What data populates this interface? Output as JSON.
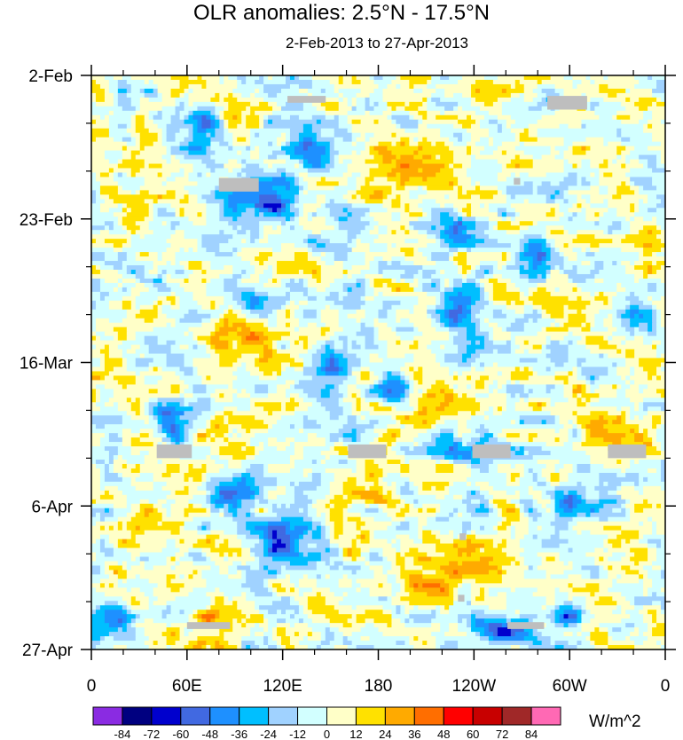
{
  "chart_data": {
    "type": "heatmap",
    "title": "OLR anomalies: 2.5°N - 17.5°N",
    "subtitle": "2-Feb-2013 to 27-Apr-2013",
    "x_tick_labels": [
      "0",
      "60E",
      "120E",
      "180",
      "120W",
      "60W",
      "0"
    ],
    "x_range_deg_east": [
      0,
      360
    ],
    "y_tick_labels": [
      "2-Feb",
      "23-Feb",
      "16-Mar",
      "6-Apr",
      "27-Apr"
    ],
    "y_range": [
      "2013-02-02",
      "2013-04-27"
    ],
    "y_direction": "time increases downward",
    "colorbar": {
      "units": "W/m^2",
      "levels": [
        -84,
        -72,
        -60,
        -48,
        -36,
        -24,
        -12,
        0,
        12,
        24,
        36,
        48,
        60,
        72,
        84
      ],
      "colors": [
        "#8a2be2",
        "#000080",
        "#0000cd",
        "#4169e1",
        "#1e90ff",
        "#00bfff",
        "#a0d2ff",
        "#d2ffff",
        "#ffffc8",
        "#ffe100",
        "#ffaa00",
        "#ff6e00",
        "#ff0000",
        "#c80000",
        "#a02828",
        "#ff69b4"
      ]
    },
    "missing_color": "#bebebe",
    "features": [
      {
        "kind": "negative",
        "x_deg": 70,
        "date": "2013-02-10",
        "lon_span_deg": 30,
        "days_span": 6,
        "strength": -40
      },
      {
        "kind": "negative",
        "x_deg": 110,
        "date": "2013-02-20",
        "lon_span_deg": 50,
        "days_span": 7,
        "strength": -55
      },
      {
        "kind": "negative",
        "x_deg": 140,
        "date": "2013-02-13",
        "lon_span_deg": 30,
        "days_span": 6,
        "strength": -45
      },
      {
        "kind": "negative",
        "x_deg": 225,
        "date": "2013-02-25",
        "lon_span_deg": 25,
        "days_span": 6,
        "strength": -50
      },
      {
        "kind": "negative",
        "x_deg": 280,
        "date": "2013-02-28",
        "lon_span_deg": 25,
        "days_span": 5,
        "strength": -55
      },
      {
        "kind": "negative",
        "x_deg": 100,
        "date": "2013-03-08",
        "lon_span_deg": 25,
        "days_span": 6,
        "strength": -35
      },
      {
        "kind": "negative",
        "x_deg": 230,
        "date": "2013-03-08",
        "lon_span_deg": 25,
        "days_span": 7,
        "strength": -50
      },
      {
        "kind": "negative",
        "x_deg": 150,
        "date": "2013-03-16",
        "lon_span_deg": 20,
        "days_span": 5,
        "strength": -40
      },
      {
        "kind": "negative",
        "x_deg": 190,
        "date": "2013-03-20",
        "lon_span_deg": 20,
        "days_span": 5,
        "strength": -45
      },
      {
        "kind": "negative",
        "x_deg": 50,
        "date": "2013-03-25",
        "lon_span_deg": 20,
        "days_span": 7,
        "strength": -40
      },
      {
        "kind": "negative",
        "x_deg": 240,
        "date": "2013-03-29",
        "lon_span_deg": 45,
        "days_span": 5,
        "strength": -40
      },
      {
        "kind": "negative",
        "x_deg": 85,
        "date": "2013-04-04",
        "lon_span_deg": 30,
        "days_span": 5,
        "strength": -55
      },
      {
        "kind": "negative",
        "x_deg": 120,
        "date": "2013-04-11",
        "lon_span_deg": 35,
        "days_span": 6,
        "strength": -55
      },
      {
        "kind": "negative",
        "x_deg": 300,
        "date": "2013-04-06",
        "lon_span_deg": 30,
        "days_span": 6,
        "strength": -35
      },
      {
        "kind": "negative",
        "x_deg": 10,
        "date": "2013-04-23",
        "lon_span_deg": 25,
        "days_span": 5,
        "strength": -45
      },
      {
        "kind": "negative",
        "x_deg": 260,
        "date": "2013-04-24",
        "lon_span_deg": 40,
        "days_span": 5,
        "strength": -50
      },
      {
        "kind": "negative",
        "x_deg": 300,
        "date": "2013-04-22",
        "lon_span_deg": 20,
        "days_span": 6,
        "strength": -45
      },
      {
        "kind": "negative",
        "x_deg": 340,
        "date": "2013-03-09",
        "lon_span_deg": 25,
        "days_span": 5,
        "strength": -30
      },
      {
        "kind": "positive",
        "x_deg": 35,
        "date": "2013-02-18",
        "lon_span_deg": 30,
        "days_span": 25,
        "strength": 6
      },
      {
        "kind": "positive",
        "x_deg": 95,
        "date": "2013-03-12",
        "lon_span_deg": 35,
        "days_span": 8,
        "strength": 22
      },
      {
        "kind": "positive",
        "x_deg": 200,
        "date": "2013-02-15",
        "lon_span_deg": 40,
        "days_span": 6,
        "strength": 20
      },
      {
        "kind": "positive",
        "x_deg": 215,
        "date": "2013-03-22",
        "lon_span_deg": 45,
        "days_span": 6,
        "strength": 28
      },
      {
        "kind": "positive",
        "x_deg": 230,
        "date": "2013-04-14",
        "lon_span_deg": 50,
        "days_span": 6,
        "strength": 30
      },
      {
        "kind": "positive",
        "x_deg": 210,
        "date": "2013-04-19",
        "lon_span_deg": 40,
        "days_span": 5,
        "strength": 28
      },
      {
        "kind": "positive",
        "x_deg": 330,
        "date": "2013-03-27",
        "lon_span_deg": 40,
        "days_span": 5,
        "strength": 24
      },
      {
        "kind": "positive",
        "x_deg": 165,
        "date": "2013-04-02",
        "lon_span_deg": 30,
        "days_span": 5,
        "strength": 20
      },
      {
        "kind": "positive",
        "x_deg": 75,
        "date": "2013-04-24",
        "lon_span_deg": 25,
        "days_span": 6,
        "strength": 26
      },
      {
        "kind": "positive",
        "x_deg": 350,
        "date": "2013-02-27",
        "lon_span_deg": 20,
        "days_span": 8,
        "strength": 18
      }
    ],
    "missing_patches": [
      {
        "x_deg": [
          123,
          147
        ],
        "date_range": [
          "2013-02-05",
          "2013-02-06"
        ]
      },
      {
        "x_deg": [
          286,
          311
        ],
        "date_range": [
          "2013-02-05",
          "2013-02-07"
        ]
      },
      {
        "x_deg": [
          80,
          105
        ],
        "date_range": [
          "2013-02-17",
          "2013-02-19"
        ]
      },
      {
        "x_deg": [
          265,
          269
        ],
        "date_range": [
          "2013-02-17",
          "2013-02-18"
        ]
      },
      {
        "x_deg": [
          41,
          63
        ],
        "date_range": [
          "2013-03-28",
          "2013-03-30"
        ]
      },
      {
        "x_deg": [
          161,
          185
        ],
        "date_range": [
          "2013-03-28",
          "2013-03-30"
        ]
      },
      {
        "x_deg": [
          239,
          263
        ],
        "date_range": [
          "2013-03-28",
          "2013-03-30"
        ]
      },
      {
        "x_deg": [
          324,
          348
        ],
        "date_range": [
          "2013-03-28",
          "2013-03-30"
        ]
      },
      {
        "x_deg": [
          231,
          235
        ],
        "date_range": [
          "2013-04-10",
          "2013-04-11"
        ]
      },
      {
        "x_deg": [
          230,
          234
        ],
        "date_range": [
          "2013-04-19",
          "2013-04-20"
        ]
      },
      {
        "x_deg": [
          60,
          87
        ],
        "date_range": [
          "2013-04-23",
          "2013-04-24"
        ]
      },
      {
        "x_deg": [
          261,
          284
        ],
        "date_range": [
          "2013-04-23",
          "2013-04-24"
        ]
      }
    ]
  }
}
